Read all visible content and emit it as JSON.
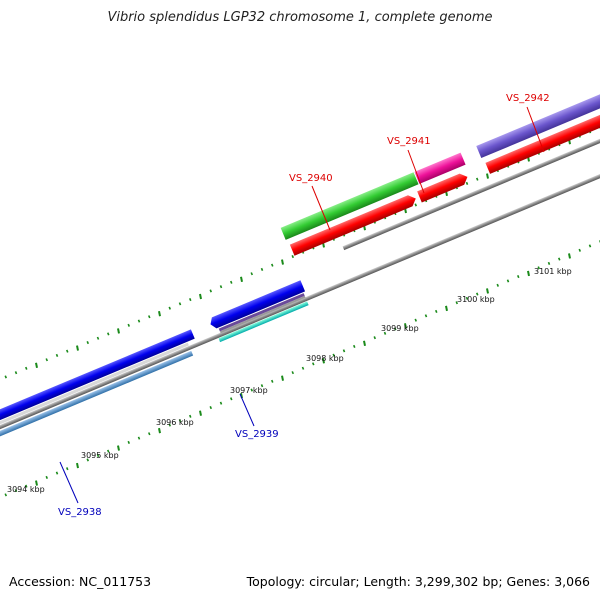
{
  "title": "Vibrio splendidus LGP32 chromosome 1, complete genome",
  "footer": {
    "accession": "Accession: NC_011753",
    "summary": "Topology: circular; Length: 3,299,302 bp; Genes: 3,066"
  },
  "scale_labels": [
    "3094 kbp",
    "3095 kbp",
    "3096 kbp",
    "3097 kbp",
    "3098 kbp",
    "3099 kbp",
    "3100 kbp",
    "3101 kbp"
  ],
  "genes": [
    {
      "label": "VS_2938",
      "color": "#0000bb"
    },
    {
      "label": "VS_2939",
      "color": "#0000bb"
    },
    {
      "label": "VS_2940",
      "color": "#dd0000"
    },
    {
      "label": "VS_2941",
      "color": "#dd0000"
    },
    {
      "label": "VS_2942",
      "color": "#dd0000"
    }
  ]
}
